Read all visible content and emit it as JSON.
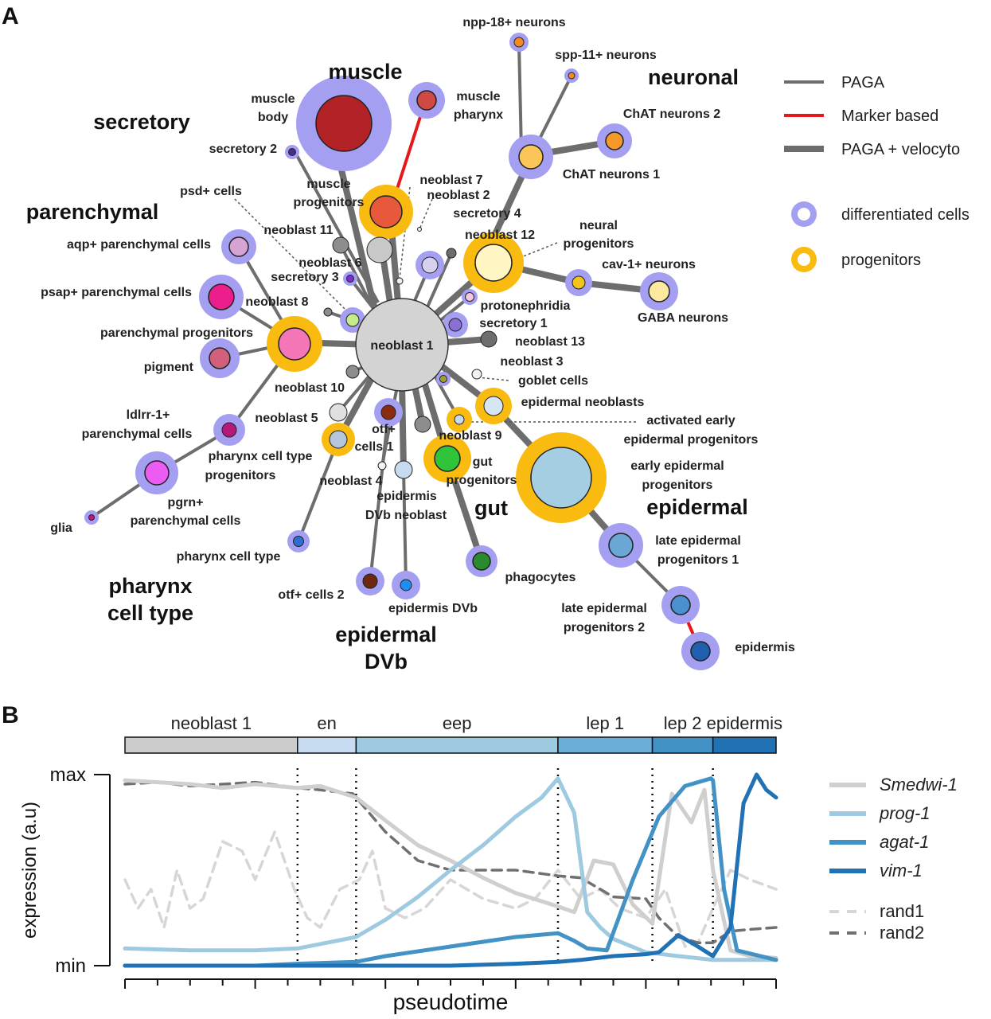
{
  "panels": {
    "a": "A",
    "b": "B"
  },
  "groups": {
    "muscle": "muscle",
    "secretory": "secretory",
    "neuronal": "neuronal",
    "parenchymal": "parenchymal",
    "epidermal": "epidermal",
    "gut": "gut",
    "pharynx_1": "pharynx",
    "pharynx_2": "cell type",
    "epidermal_dvb_1": "epidermal",
    "epidermal_dvb_2": "DVb"
  },
  "legend_a": {
    "paga": "PAGA",
    "marker": "Marker based",
    "paga_velocyto": "PAGA + velocyto",
    "differentiated": "differentiated cells",
    "progenitors": "progenitors",
    "colors": {
      "edge": "#6d6d6d",
      "marker_edge": "#e3191c",
      "differentiated": "#a59ff2",
      "progenitor": "#f9bb10"
    }
  },
  "nodes": {
    "neoblast_1": "neoblast 1",
    "muscle_body_1": "muscle",
    "muscle_body_2": "body",
    "muscle_pharynx_1": "muscle",
    "muscle_pharynx_2": "pharynx",
    "secretory_2": "secretory 2",
    "muscle_progenitors_1": "muscle",
    "muscle_progenitors_2": "progenitors",
    "npp18": "npp-18+ neurons",
    "spp11": "spp-11+ neurons",
    "chat2": "ChAT neurons 2",
    "chat1": "ChAT neurons 1",
    "neoblast_7": "neoblast 7",
    "neoblast_2": "neoblast 2",
    "secretory_4": "secretory 4",
    "psd": "psd+ cells",
    "neoblast_11": "neoblast 11",
    "aqp": "aqp+ parenchymal cells",
    "neoblast_6": "neoblast 6",
    "neoblast_12": "neoblast 12",
    "neural_progenitors_1": "neural",
    "neural_progenitors_2": "progenitors",
    "cav1": "cav-1+ neurons",
    "secretory_3": "secretory 3",
    "psap": "psap+ parenchymal cells",
    "neoblast_8": "neoblast 8",
    "gaba": "GABA neurons",
    "protonephridia": "protonephridia",
    "parenchymal_progenitors": "parenchymal progenitors",
    "secretory_1": "secretory 1",
    "neoblast_13": "neoblast 13",
    "pigment": "pigment",
    "neoblast_3": "neoblast 3",
    "goblet": "goblet cells",
    "neoblast_10": "neoblast 10",
    "epidermal_neoblasts": "epidermal neoblasts",
    "ldlrr_1": "ldlrr-1+",
    "ldlrr_2": "parenchymal cells",
    "neoblast_5": "neoblast 5",
    "activated_1": "activated early",
    "activated_2": "epidermal progenitors",
    "otf1_1": "otf+",
    "otf1_2": "cells 1",
    "neoblast_9": "neoblast 9",
    "pharynx_prog_1": "pharynx cell type",
    "pharynx_prog_2": "progenitors",
    "gut_prog_1": "gut",
    "gut_prog_2": "progenitors",
    "early_epi_1": "early epidermal",
    "early_epi_2": "progenitors",
    "neoblast_4": "neoblast 4",
    "epi_dvb_neoblast_1": "epidermis",
    "epi_dvb_neoblast_2": "DVb neoblast",
    "pgrn_1": "pgrn+",
    "pgrn_2": "parenchymal cells",
    "glia": "glia",
    "late_epi_1_1": "late epidermal",
    "late_epi_1_2": "progenitors 1",
    "pharynx_cell_type": "pharynx cell type",
    "phagocytes": "phagocytes",
    "otf2": "otf+ cells 2",
    "epidermis_dvb": "epidermis DVb",
    "late_epi_2_1": "late epidermal",
    "late_epi_2_2": "progenitors 2",
    "epidermis": "epidermis"
  },
  "chart_data": {
    "type": "line",
    "xlabel": "pseudotime",
    "ylabel": "expression (a.u)",
    "y_ticks": [
      "min",
      "max"
    ],
    "ylim": [
      0,
      1
    ],
    "x_range": [
      0,
      1
    ],
    "segments": [
      {
        "label": "neoblast 1",
        "start": 0.0,
        "end": 0.265,
        "color": "#cccccc"
      },
      {
        "label": "en",
        "start": 0.265,
        "end": 0.355,
        "color": "#c6dbef"
      },
      {
        "label": "eep",
        "start": 0.355,
        "end": 0.665,
        "color": "#9ecae1"
      },
      {
        "label": "lep 1",
        "start": 0.665,
        "end": 0.81,
        "color": "#6baed6"
      },
      {
        "label": "lep 2",
        "start": 0.81,
        "end": 0.903,
        "color": "#4292c6"
      },
      {
        "label": "epidermis",
        "start": 0.903,
        "end": 1.0,
        "color": "#2171b5"
      }
    ],
    "boundaries": [
      0.265,
      0.355,
      0.665,
      0.81,
      0.903
    ],
    "legend": {
      "gene_1": "Smedwi-1",
      "gene_2": "prog-1",
      "gene_3": "agat-1",
      "gene_4": "vim-1",
      "rand_1": "rand1",
      "rand_2": "rand2"
    },
    "series": [
      {
        "name": "Smedwi-1",
        "color": "#cfcfcf",
        "style": "solid",
        "x": [
          0,
          0.05,
          0.1,
          0.15,
          0.2,
          0.265,
          0.3,
          0.355,
          0.4,
          0.45,
          0.5,
          0.55,
          0.6,
          0.665,
          0.69,
          0.72,
          0.75,
          0.78,
          0.81,
          0.84,
          0.87,
          0.89,
          0.903,
          0.93,
          0.96,
          1.0
        ],
        "y": [
          0.97,
          0.96,
          0.95,
          0.93,
          0.95,
          0.93,
          0.94,
          0.88,
          0.76,
          0.63,
          0.55,
          0.46,
          0.38,
          0.31,
          0.28,
          0.55,
          0.53,
          0.32,
          0.22,
          0.9,
          0.75,
          0.92,
          0.5,
          0.08,
          0.05,
          0.04
        ]
      },
      {
        "name": "prog-1",
        "color": "#9ecae1",
        "style": "solid",
        "x": [
          0,
          0.1,
          0.2,
          0.265,
          0.355,
          0.4,
          0.45,
          0.5,
          0.55,
          0.6,
          0.64,
          0.665,
          0.69,
          0.71,
          0.73,
          0.75,
          0.8,
          0.85,
          0.903,
          0.95,
          1.0
        ],
        "y": [
          0.09,
          0.08,
          0.08,
          0.09,
          0.15,
          0.24,
          0.36,
          0.5,
          0.63,
          0.78,
          0.88,
          0.98,
          0.8,
          0.28,
          0.2,
          0.14,
          0.07,
          0.05,
          0.03,
          0.03,
          0.03
        ]
      },
      {
        "name": "agat-1",
        "color": "#4292c6",
        "style": "solid",
        "x": [
          0,
          0.2,
          0.265,
          0.355,
          0.4,
          0.5,
          0.6,
          0.665,
          0.69,
          0.71,
          0.74,
          0.78,
          0.82,
          0.86,
          0.9,
          0.903,
          0.92,
          0.94,
          1.0
        ],
        "y": [
          0.0,
          0.0,
          0.01,
          0.02,
          0.05,
          0.1,
          0.15,
          0.17,
          0.13,
          0.09,
          0.08,
          0.45,
          0.78,
          0.94,
          0.98,
          0.97,
          0.4,
          0.08,
          0.03
        ]
      },
      {
        "name": "vim-1",
        "color": "#2171b5",
        "style": "solid",
        "x": [
          0,
          0.3,
          0.5,
          0.6,
          0.665,
          0.7,
          0.75,
          0.8,
          0.82,
          0.85,
          0.88,
          0.903,
          0.93,
          0.95,
          0.97,
          0.985,
          1.0
        ],
        "y": [
          0.0,
          0.0,
          0.0,
          0.01,
          0.02,
          0.03,
          0.05,
          0.06,
          0.07,
          0.16,
          0.1,
          0.05,
          0.2,
          0.85,
          1.0,
          0.92,
          0.88
        ]
      },
      {
        "name": "rand1",
        "color": "#d6d6d6",
        "style": "dashed",
        "x": [
          0,
          0.02,
          0.04,
          0.06,
          0.08,
          0.1,
          0.12,
          0.15,
          0.18,
          0.2,
          0.23,
          0.26,
          0.28,
          0.3,
          0.33,
          0.36,
          0.38,
          0.4,
          0.43,
          0.46,
          0.5,
          0.55,
          0.6,
          0.63,
          0.665,
          0.7,
          0.73,
          0.76,
          0.8,
          0.83,
          0.86,
          0.88,
          0.903,
          0.93,
          0.96,
          1.0
        ],
        "y": [
          0.45,
          0.3,
          0.4,
          0.2,
          0.5,
          0.3,
          0.35,
          0.65,
          0.6,
          0.45,
          0.7,
          0.4,
          0.25,
          0.2,
          0.4,
          0.45,
          0.6,
          0.3,
          0.25,
          0.3,
          0.45,
          0.35,
          0.3,
          0.35,
          0.5,
          0.35,
          0.4,
          0.3,
          0.25,
          0.4,
          0.1,
          0.12,
          0.3,
          0.5,
          0.45,
          0.4
        ]
      },
      {
        "name": "rand2",
        "color": "#707070",
        "style": "dashed",
        "x": [
          0,
          0.05,
          0.1,
          0.15,
          0.2,
          0.265,
          0.3,
          0.35,
          0.4,
          0.45,
          0.5,
          0.55,
          0.6,
          0.665,
          0.7,
          0.75,
          0.8,
          0.82,
          0.85,
          0.88,
          0.903,
          0.93,
          0.96,
          1.0
        ],
        "y": [
          0.95,
          0.96,
          0.94,
          0.95,
          0.96,
          0.93,
          0.92,
          0.9,
          0.7,
          0.55,
          0.5,
          0.5,
          0.5,
          0.47,
          0.46,
          0.36,
          0.35,
          0.25,
          0.15,
          0.12,
          0.12,
          0.18,
          0.19,
          0.2
        ]
      }
    ]
  }
}
